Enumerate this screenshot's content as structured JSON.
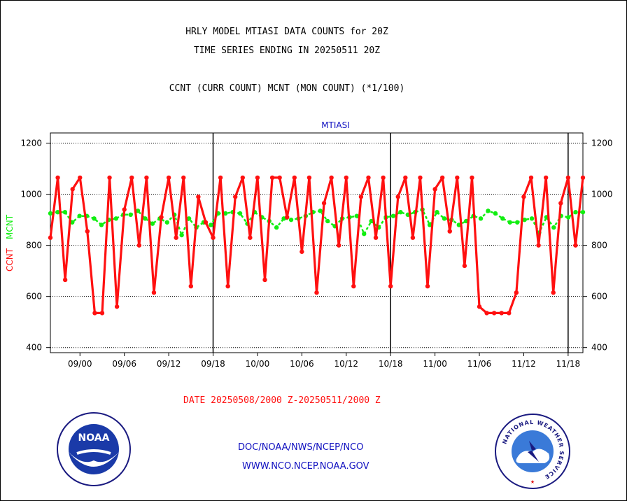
{
  "header": {
    "line1": "HRLY MODEL MTIASI DATA COUNTS for 20Z",
    "line2": "TIME SERIES ENDING IN 20250511 20Z",
    "line3": "CCNT (CURR COUNT) MCNT (MON COUNT) (*1/100)"
  },
  "chart_data": {
    "type": "line",
    "title": "MTIASI",
    "ylabel_ccnt": "CCNT",
    "ylabel_mcnt": "MCNT",
    "xlabel": "DATE 20250508/2000 Z-20250511/2000 Z",
    "ylim": [
      380,
      1240
    ],
    "yticks": [
      400,
      600,
      800,
      1000,
      1200
    ],
    "grid": true,
    "x_tick_labels": [
      "09/00",
      "09/06",
      "09/12",
      "09/18",
      "10/00",
      "10/06",
      "10/12",
      "10/18",
      "11/00",
      "11/06",
      "11/12",
      "11/18"
    ],
    "day_boundaries": [
      "09/18",
      "10/18",
      "11/18"
    ],
    "x_start": "08/20",
    "x_end": "11/20",
    "series": [
      {
        "name": "CCNT",
        "color": "#ff1010",
        "values": [
          830,
          1065,
          665,
          1020,
          1065,
          855,
          535,
          535,
          1065,
          560,
          940,
          1065,
          800,
          1065,
          615,
          910,
          1065,
          830,
          1065,
          640,
          990,
          890,
          830,
          1065,
          640,
          990,
          1065,
          830,
          1065,
          665,
          1065,
          1065,
          910,
          1065,
          775,
          1065,
          615,
          965,
          1065,
          800,
          1065,
          640,
          990,
          1065,
          830,
          1065,
          640,
          990,
          1065,
          830,
          1065,
          640,
          1020,
          1065,
          855,
          1065,
          720,
          1065,
          560,
          535,
          535,
          535,
          535,
          615,
          990,
          1065,
          800,
          1065,
          615,
          965,
          1065,
          800,
          1065
        ]
      },
      {
        "name": "MCNT",
        "color": "#10ee10",
        "values": [
          925,
          930,
          930,
          890,
          915,
          915,
          905,
          880,
          900,
          905,
          920,
          920,
          935,
          905,
          885,
          905,
          890,
          920,
          840,
          905,
          870,
          890,
          880,
          925,
          925,
          930,
          925,
          885,
          930,
          910,
          895,
          870,
          905,
          900,
          905,
          915,
          930,
          935,
          895,
          875,
          905,
          910,
          915,
          845,
          895,
          870,
          910,
          915,
          930,
          920,
          930,
          940,
          880,
          930,
          905,
          900,
          880,
          895,
          915,
          905,
          935,
          925,
          905,
          890,
          890,
          900,
          905,
          850,
          910,
          870,
          915,
          910,
          930,
          930
        ]
      }
    ]
  },
  "footer": {
    "date_label": "DATE 20250508/2000 Z-20250511/2000 Z",
    "org": "DOC/NOAA/NWS/NCEP/NCO",
    "url": "WWW.NCO.NCEP.NOAA.GOV"
  },
  "logos": {
    "noaa_text": "NOAA",
    "nws_text": "NATIONAL WEATHER SERVICE"
  }
}
